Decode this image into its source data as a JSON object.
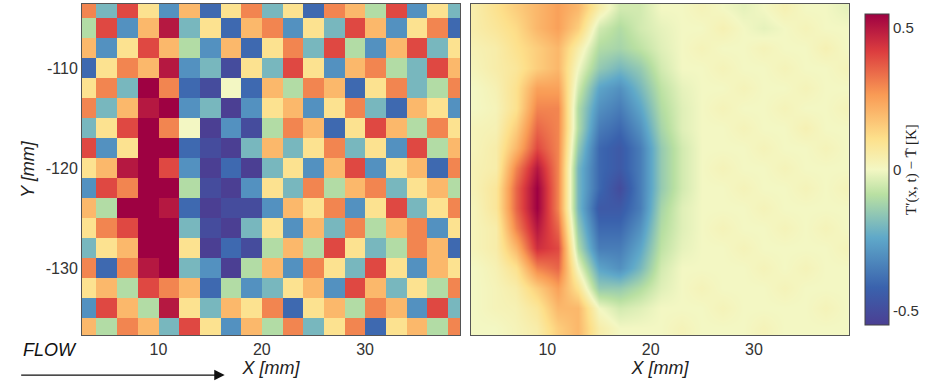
{
  "chart_data": {
    "type": "heatmap",
    "x": [
      3,
      5,
      7,
      9,
      11,
      13,
      15,
      17,
      19,
      21,
      23,
      25,
      27,
      29,
      31,
      33,
      35,
      37,
      39
    ],
    "y": [
      -104,
      -106,
      -108,
      -110,
      -112,
      -114,
      -116,
      -118,
      -120,
      -122,
      -124,
      -126,
      -128,
      -130,
      -132,
      -134,
      -136
    ],
    "xlim": [
      2.6,
      39.2
    ],
    "ylim": [
      -136.7,
      -103.6
    ],
    "xticks": [
      10,
      20,
      30
    ],
    "yticks": [
      -130,
      -120,
      -110
    ],
    "colorbar": {
      "range": [
        -0.55,
        0.55
      ],
      "ticks": [
        -0.5,
        0,
        0.5
      ],
      "title": "T′(x, t) − T̄ [K]"
    },
    "annotations": [
      {
        "text": "FLOW"
      }
    ],
    "panels": [
      {
        "x_label": "X [mm]",
        "y_label": "Y [mm]",
        "tick_labels": true,
        "cells": [
          [
            0.3,
            -0.2,
            0.4,
            0.1,
            -0.3,
            0.2,
            -0.4,
            0.1,
            0.3,
            -0.2,
            0.1,
            -0.4,
            0.3,
            0.2,
            -0.1,
            0.4,
            -0.3,
            0.1,
            -0.2
          ],
          [
            -0.1,
            0.4,
            -0.3,
            0.2,
            0.5,
            -0.2,
            0.1,
            -0.4,
            0.2,
            0.3,
            -0.3,
            0.1,
            -0.2,
            0.4,
            0.2,
            -0.3,
            0.1,
            0.3,
            -0.4
          ],
          [
            0.2,
            -0.3,
            0.1,
            0.4,
            0.2,
            -0.1,
            -0.3,
            0.2,
            -0.4,
            0.1,
            0.3,
            -0.2,
            0.4,
            -0.1,
            -0.3,
            0.2,
            0.4,
            -0.2,
            0.1
          ],
          [
            -0.4,
            0.1,
            0.3,
            0.2,
            0.5,
            -0.3,
            -0.2,
            -0.5,
            0.1,
            -0.2,
            0.4,
            0.1,
            -0.3,
            0.2,
            0.3,
            -0.1,
            -0.2,
            0.4,
            0.2
          ],
          [
            0.1,
            0.3,
            -0.2,
            0.6,
            0.3,
            -0.4,
            -0.5,
            0.0,
            -0.4,
            0.2,
            -0.1,
            0.3,
            0.2,
            -0.4,
            0.1,
            0.3,
            -0.2,
            -0.1,
            0.3
          ],
          [
            0.3,
            -0.2,
            0.2,
            0.5,
            0.6,
            -0.3,
            -0.2,
            -0.6,
            -0.3,
            0.1,
            0.2,
            -0.3,
            0.1,
            0.3,
            -0.2,
            -0.4,
            0.2,
            0.1,
            -0.3
          ],
          [
            -0.2,
            0.1,
            0.4,
            0.7,
            0.3,
            0.0,
            -0.6,
            -0.3,
            -0.5,
            -0.1,
            0.3,
            0.2,
            -0.4,
            0.1,
            0.4,
            0.2,
            -0.1,
            0.3,
            0.1
          ],
          [
            0.4,
            -0.3,
            0.1,
            0.6,
            0.7,
            -0.4,
            -0.5,
            -0.7,
            -0.2,
            0.2,
            -0.2,
            0.1,
            0.3,
            -0.2,
            0.1,
            -0.3,
            0.4,
            -0.1,
            0.2
          ],
          [
            0.1,
            0.2,
            0.5,
            0.8,
            0.4,
            -0.3,
            -0.6,
            -0.4,
            -0.6,
            -0.2,
            0.1,
            -0.3,
            0.2,
            0.4,
            -0.3,
            0.1,
            0.2,
            -0.4,
            0.3
          ],
          [
            -0.3,
            0.4,
            0.3,
            0.7,
            0.6,
            -0.1,
            -0.5,
            -0.8,
            -0.3,
            0.1,
            -0.2,
            0.3,
            -0.1,
            0.2,
            0.3,
            -0.2,
            0.1,
            0.2,
            -0.1
          ],
          [
            0.2,
            -0.1,
            0.6,
            0.9,
            0.5,
            -0.4,
            -0.7,
            -0.5,
            -0.5,
            -0.3,
            0.2,
            0.1,
            0.3,
            -0.3,
            0.1,
            0.4,
            -0.2,
            0.1,
            0.3
          ],
          [
            0.1,
            0.3,
            0.4,
            0.7,
            0.8,
            -0.2,
            -0.5,
            -0.6,
            -0.2,
            0.1,
            -0.3,
            0.2,
            -0.2,
            0.3,
            -0.1,
            0.2,
            0.3,
            -0.3,
            0.1
          ],
          [
            -0.2,
            0.1,
            0.2,
            0.8,
            0.6,
            0.1,
            -0.6,
            -0.4,
            -0.5,
            -0.1,
            0.2,
            -0.1,
            0.4,
            0.1,
            -0.2,
            -0.1,
            0.3,
            0.2,
            -0.4
          ],
          [
            0.3,
            -0.4,
            0.3,
            0.5,
            0.7,
            -0.2,
            -0.3,
            -0.6,
            -0.1,
            0.2,
            -0.3,
            0.3,
            0.1,
            -0.2,
            0.4,
            0.1,
            -0.3,
            0.2,
            0.1
          ],
          [
            0.1,
            0.2,
            -0.1,
            0.4,
            0.3,
            0.2,
            -0.4,
            -0.1,
            -0.3,
            -0.2,
            0.1,
            0.2,
            -0.3,
            0.4,
            0.2,
            -0.2,
            0.1,
            -0.1,
            0.3
          ],
          [
            -0.3,
            0.4,
            0.2,
            -0.1,
            0.5,
            0.1,
            -0.2,
            0.2,
            0.1,
            0.3,
            -0.4,
            0.1,
            0.2,
            -0.1,
            0.3,
            0.2,
            -0.3,
            0.4,
            -0.2
          ],
          [
            0.2,
            -0.1,
            0.3,
            0.2,
            -0.2,
            0.4,
            0.1,
            -0.3,
            0.2,
            -0.1,
            0.3,
            -0.2,
            0.1,
            0.3,
            -0.4,
            0.1,
            0.2,
            -0.1,
            0.3
          ]
        ]
      },
      {
        "x_label": "X [mm]",
        "tick_labels": "x",
        "cells": [
          [
            0.05,
            0.1,
            0.15,
            0.2,
            0.25,
            0.2,
            0.05,
            -0.05,
            -0.05,
            0,
            0,
            0.02,
            0,
            -0.02,
            0,
            0.03,
            0,
            0,
            -0.02
          ],
          [
            0.05,
            0.08,
            0.12,
            0.2,
            0.25,
            0.15,
            -0.05,
            -0.1,
            -0.05,
            -0.02,
            0,
            0,
            0.03,
            0,
            -0.02,
            0,
            0.02,
            0,
            0
          ],
          [
            0.03,
            0.05,
            0.1,
            0.15,
            0.2,
            0.05,
            -0.1,
            -0.12,
            -0.08,
            -0.03,
            0,
            0.02,
            0,
            0,
            0.02,
            0,
            0,
            0.03,
            0
          ],
          [
            0.02,
            0.05,
            0.08,
            0.15,
            0.2,
            0,
            -0.15,
            -0.2,
            -0.15,
            -0.05,
            0,
            0,
            0.02,
            0,
            0,
            0.02,
            0,
            0,
            0.02
          ],
          [
            0,
            0.03,
            0.1,
            0.25,
            0.25,
            -0.05,
            -0.25,
            -0.3,
            -0.2,
            -0.08,
            -0.02,
            0,
            0,
            0.02,
            0,
            0,
            0.02,
            0,
            0
          ],
          [
            0,
            0.02,
            0.1,
            0.3,
            0.3,
            -0.1,
            -0.3,
            -0.35,
            -0.25,
            -0.1,
            -0.03,
            0,
            0.02,
            0,
            0,
            0.02,
            0,
            0,
            0.02
          ],
          [
            0.02,
            0.03,
            0.15,
            0.35,
            0.3,
            -0.1,
            -0.35,
            -0.4,
            -0.3,
            -0.12,
            -0.03,
            0,
            0,
            0.02,
            0,
            0,
            0.03,
            0,
            0
          ],
          [
            0.02,
            0.05,
            0.2,
            0.4,
            0.3,
            -0.15,
            -0.4,
            -0.45,
            -0.35,
            -0.15,
            -0.05,
            0,
            0,
            0,
            0.02,
            0,
            0,
            0.02,
            0
          ],
          [
            0.03,
            0.05,
            0.3,
            0.5,
            0.3,
            -0.2,
            -0.4,
            -0.45,
            -0.35,
            -0.15,
            -0.05,
            0,
            0.02,
            0,
            0,
            0.02,
            0,
            0,
            0
          ],
          [
            0.03,
            0.08,
            0.35,
            0.55,
            0.3,
            -0.2,
            -0.4,
            -0.5,
            -0.35,
            -0.15,
            -0.05,
            0,
            0,
            0.02,
            0,
            0,
            0.02,
            0,
            0.02
          ],
          [
            0.02,
            0.08,
            0.35,
            0.55,
            0.3,
            -0.2,
            -0.45,
            -0.45,
            -0.35,
            -0.12,
            -0.03,
            0,
            0,
            0,
            0.02,
            0,
            0,
            0,
            0
          ],
          [
            0.02,
            0.05,
            0.3,
            0.5,
            0.35,
            -0.15,
            -0.4,
            -0.4,
            -0.3,
            -0.1,
            -0.03,
            0,
            0.02,
            0,
            0,
            0.02,
            0,
            0.02,
            0
          ],
          [
            0.02,
            0.05,
            0.2,
            0.45,
            0.4,
            -0.1,
            -0.35,
            -0.35,
            -0.25,
            -0.08,
            -0.02,
            0,
            0,
            0.02,
            0,
            0,
            0,
            0,
            0.02
          ],
          [
            0,
            0.03,
            0.1,
            0.3,
            0.35,
            0,
            -0.25,
            -0.3,
            -0.2,
            -0.05,
            0,
            0,
            0,
            0,
            0.02,
            0,
            0.02,
            0,
            0
          ],
          [
            0,
            0.02,
            0.05,
            0.15,
            0.25,
            0.1,
            -0.15,
            -0.15,
            -0.1,
            -0.03,
            0,
            0.02,
            0,
            0,
            0,
            0.02,
            0,
            0,
            0
          ],
          [
            0,
            0.02,
            0.03,
            0.08,
            0.2,
            0.2,
            0,
            -0.05,
            -0.03,
            0,
            0,
            0,
            0.02,
            0,
            0,
            0,
            0,
            0.02,
            0
          ],
          [
            0,
            0,
            0.02,
            0.05,
            0.15,
            0.2,
            0.05,
            0,
            0,
            0,
            0.02,
            0,
            0,
            0,
            0.02,
            0,
            0,
            0,
            0
          ]
        ]
      }
    ]
  }
}
